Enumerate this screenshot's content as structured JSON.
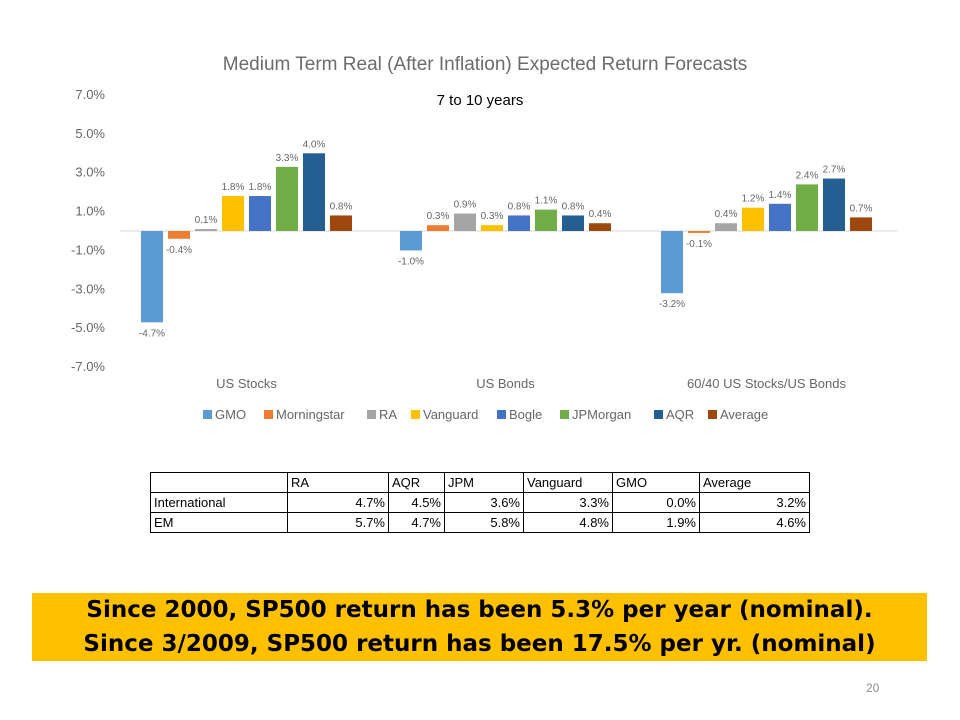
{
  "chart_data": {
    "type": "bar",
    "title": "Medium Term Real (After Inflation) Expected Return Forecasts",
    "subtitle": "7 to 10 years",
    "categories": [
      "US Stocks",
      "US Bonds",
      "60/40 US Stocks/US Bonds"
    ],
    "series": [
      {
        "name": "GMO",
        "color": "#5b9bd5",
        "values": [
          -4.7,
          -1.0,
          -3.2
        ],
        "labels": [
          "-4.7%",
          "-1.0%",
          "-3.2%"
        ]
      },
      {
        "name": "Morningstar",
        "color": "#ed7d31",
        "values": [
          -0.4,
          0.3,
          -0.1
        ],
        "labels": [
          "-0.4%",
          "0.3%",
          "-0.1%"
        ]
      },
      {
        "name": "RA",
        "color": "#a5a5a5",
        "values": [
          0.1,
          0.9,
          0.4
        ],
        "labels": [
          "0.1%",
          "0.9%",
          "0.4%"
        ]
      },
      {
        "name": "Vanguard",
        "color": "#ffc000",
        "values": [
          1.8,
          0.3,
          1.2
        ],
        "labels": [
          "1.8%",
          "0.3%",
          "1.2%"
        ]
      },
      {
        "name": "Bogle",
        "color": "#4472c4",
        "values": [
          1.8,
          0.8,
          1.4
        ],
        "labels": [
          "1.8%",
          "0.8%",
          "1.4%"
        ]
      },
      {
        "name": "JPMorgan",
        "color": "#70ad47",
        "values": [
          3.3,
          1.1,
          2.4
        ],
        "labels": [
          "3.3%",
          "1.1%",
          "2.4%"
        ]
      },
      {
        "name": "AQR",
        "color": "#255e91",
        "values": [
          4.0,
          0.8,
          2.7
        ],
        "labels": [
          "4.0%",
          "0.8%",
          "2.7%"
        ]
      },
      {
        "name": "Average",
        "color": "#9e480e",
        "values": [
          0.8,
          0.4,
          0.7
        ],
        "labels": [
          "0.8%",
          "0.4%",
          "0.7%"
        ]
      }
    ],
    "yticks": [
      "7.0%",
      "5.0%",
      "3.0%",
      "1.0%",
      "-1.0%",
      "-3.0%",
      "-5.0%",
      "-7.0%"
    ],
    "ytick_values": [
      7,
      5,
      3,
      1,
      -1,
      -3,
      -5,
      -7
    ],
    "ylim": [
      -7,
      7
    ],
    "legend_position": "bottom",
    "grid": false
  },
  "table": {
    "headers": [
      "",
      "RA",
      "AQR",
      "JPM",
      "Vanguard",
      "GMO",
      "Average"
    ],
    "rows": [
      [
        "International",
        "4.7%",
        "4.5%",
        "3.6%",
        "3.3%",
        "0.0%",
        "3.2%"
      ],
      [
        "EM",
        "5.7%",
        "4.7%",
        "5.8%",
        "4.8%",
        "1.9%",
        "4.6%"
      ]
    ]
  },
  "banner": {
    "line1": "Since 2000, SP500 return has been 5.3% per year (nominal).",
    "line2": "Since 3/2009, SP500 return has been 17.5% per yr. (nominal)"
  },
  "page_number": "20"
}
